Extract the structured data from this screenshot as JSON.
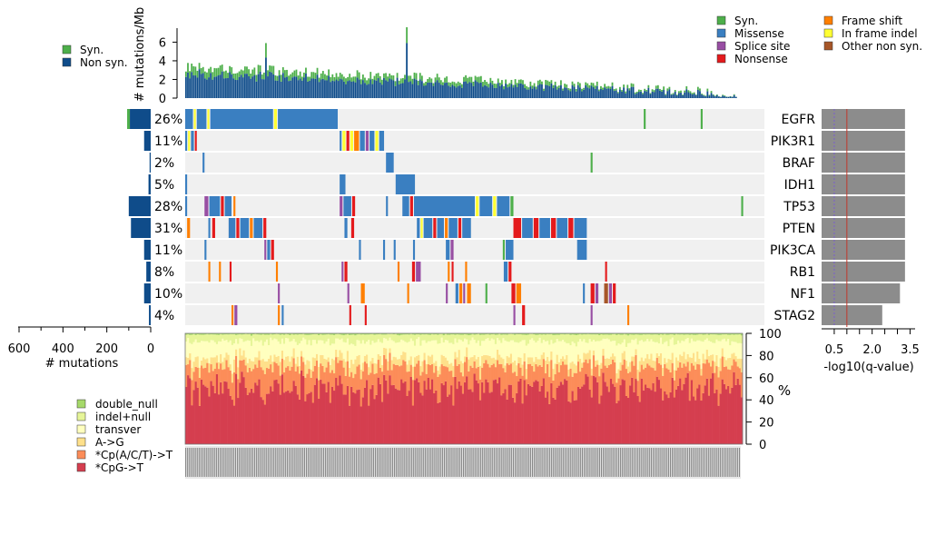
{
  "chart_data": {
    "type": "heatmap",
    "panel_top": {
      "ylabel": "# mutations/Mb",
      "yticks": [
        0,
        2,
        4,
        6
      ],
      "ylim": [
        0,
        7.5
      ],
      "legend": [
        "Syn.",
        "Non syn."
      ],
      "colors": {
        "syn": "#4daf4a",
        "nonsyn": "#0f4c8a"
      },
      "num_samples": 290,
      "max_total": 7.6,
      "spike_total": 5.9
    },
    "genes": [
      {
        "name": "EGFR",
        "pct": "26%",
        "count": 95,
        "q": 3.3
      },
      {
        "name": "PIK3R1",
        "pct": "11%",
        "count": 30,
        "q": 3.3
      },
      {
        "name": "BRAF",
        "pct": "2%",
        "count": 5,
        "q": 3.3
      },
      {
        "name": "IDH1",
        "pct": "5%",
        "count": 10,
        "q": 3.3
      },
      {
        "name": "TP53",
        "pct": "28%",
        "count": 100,
        "q": 3.3
      },
      {
        "name": "PTEN",
        "pct": "31%",
        "count": 90,
        "q": 3.3
      },
      {
        "name": "PIK3CA",
        "pct": "11%",
        "count": 30,
        "q": 3.3
      },
      {
        "name": "RB1",
        "pct": "8%",
        "count": 20,
        "q": 3.3
      },
      {
        "name": "NF1",
        "pct": "10%",
        "count": 30,
        "q": 3.1
      },
      {
        "name": "STAG2",
        "pct": "4%",
        "count": 8,
        "q": 2.4
      }
    ],
    "mutation_legend": [
      {
        "label": "Syn.",
        "color": "#4daf4a"
      },
      {
        "label": "Missense",
        "color": "#3a7fc1"
      },
      {
        "label": "Splice site",
        "color": "#984ea3"
      },
      {
        "label": "Nonsense",
        "color": "#e41a1c"
      },
      {
        "label": "Frame shift",
        "color": "#ff7f00"
      },
      {
        "label": "In frame indel",
        "color": "#ffff33"
      },
      {
        "label": "Other non syn.",
        "color": "#a65628"
      }
    ],
    "left_axis": {
      "label": "# mutations",
      "ticks": [
        600,
        400,
        200,
        0
      ],
      "max": 600
    },
    "right_axis": {
      "label": "-log10(q-value)",
      "ticks": [
        0.5,
        2.0,
        3.5
      ],
      "xlim": [
        0,
        3.7
      ],
      "threshold_dotted": 0.5,
      "threshold_solid": 1.0
    },
    "bottom_panel": {
      "ylabel": "%",
      "yticks": [
        0,
        20,
        40,
        60,
        80,
        100
      ],
      "categories": [
        "double_null",
        "indel+null",
        "transver",
        "A->G",
        "*Cp(A/C/T)->T",
        "*CpG->T"
      ],
      "colors": {
        "double_null": "#a6d96a",
        "indel+null": "#e6f598",
        "transver": "#ffffbf",
        "A->G": "#fee08b",
        "*Cp(A/C/T)->T": "#fc8d59",
        "*CpG->T": "#d53e4f"
      },
      "mean_fractions": [
        0.01,
        0.06,
        0.15,
        0.08,
        0.18,
        0.52
      ]
    },
    "background_color": "#f0f0f0"
  }
}
